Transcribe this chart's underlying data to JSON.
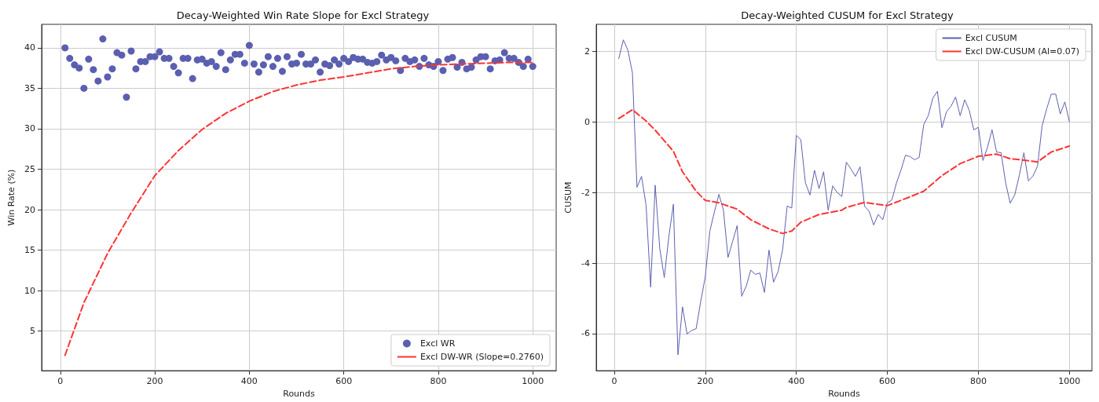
{
  "chart_data": [
    {
      "type": "scatter",
      "title": "Decay-Weighted Win Rate Slope for Excl Strategy",
      "xlabel": "Rounds",
      "ylabel": "Win Rate (%)",
      "xlim": [
        -39.5,
        1049.5
      ],
      "ylim": [
        0.1,
        42.9
      ],
      "xticks": [
        0,
        200,
        400,
        600,
        800,
        1000
      ],
      "yticks": [
        5,
        10,
        15,
        20,
        25,
        30,
        35,
        40
      ],
      "grid": true,
      "legend": "bottom right",
      "series": [
        {
          "name": "Excl WR",
          "marker": "circle",
          "color": "#5b5fb0",
          "x": [
            10,
            20,
            30,
            40,
            50,
            60,
            70,
            80,
            90,
            100,
            110,
            120,
            130,
            140,
            150,
            160,
            170,
            180,
            190,
            200,
            210,
            220,
            230,
            240,
            250,
            260,
            270,
            280,
            290,
            300,
            310,
            320,
            330,
            340,
            350,
            360,
            370,
            380,
            390,
            400,
            410,
            420,
            430,
            440,
            450,
            460,
            470,
            480,
            490,
            500,
            510,
            520,
            530,
            540,
            550,
            560,
            570,
            580,
            590,
            600,
            610,
            620,
            630,
            640,
            650,
            660,
            670,
            680,
            690,
            700,
            710,
            720,
            730,
            740,
            750,
            760,
            770,
            780,
            790,
            800,
            810,
            820,
            830,
            840,
            850,
            860,
            870,
            880,
            890,
            900,
            910,
            920,
            930,
            940,
            950,
            960,
            970,
            980,
            990,
            1000
          ],
          "values": [
            40.0,
            38.7,
            37.9,
            37.5,
            35.0,
            38.6,
            37.3,
            35.9,
            41.1,
            36.4,
            37.4,
            39.4,
            39.1,
            33.9,
            39.6,
            37.4,
            38.3,
            38.3,
            38.9,
            38.9,
            39.5,
            38.7,
            38.7,
            37.7,
            36.9,
            38.7,
            38.7,
            36.2,
            38.5,
            38.6,
            38.1,
            38.3,
            37.7,
            39.4,
            37.3,
            38.5,
            39.2,
            39.2,
            38.1,
            40.3,
            38.0,
            37.0,
            37.9,
            38.9,
            37.7,
            38.7,
            37.1,
            38.9,
            38.0,
            38.1,
            39.2,
            38.0,
            38.0,
            38.5,
            37.0,
            38.0,
            37.8,
            38.5,
            38.0,
            38.7,
            38.3,
            38.8,
            38.6,
            38.6,
            38.2,
            38.1,
            38.3,
            39.1,
            38.5,
            38.8,
            38.4,
            37.2,
            38.7,
            38.3,
            38.5,
            37.7,
            38.7,
            37.9,
            37.7,
            38.3,
            37.2,
            38.6,
            38.8,
            37.6,
            38.2,
            37.4,
            37.6,
            38.5,
            38.9,
            38.9,
            37.4,
            38.4,
            38.5,
            39.4,
            38.7,
            38.7,
            38.2,
            37.7,
            38.6,
            37.7
          ]
        },
        {
          "name": "Excl DW-WR (Slope=0.2760)",
          "type": "line",
          "marker": "none",
          "line_style": "dashed",
          "color": "#ff3333",
          "x": [
            10,
            50,
            100,
            150,
            200,
            250,
            300,
            350,
            400,
            450,
            500,
            550,
            600,
            650,
            700,
            750,
            800,
            850,
            900,
            950,
            1000
          ],
          "values": [
            2.0,
            8.5,
            14.6,
            19.6,
            24.2,
            27.3,
            29.9,
            31.9,
            33.4,
            34.6,
            35.4,
            36.0,
            36.4,
            36.9,
            37.4,
            37.7,
            37.9,
            38.0,
            38.1,
            38.2,
            38.2
          ]
        }
      ]
    },
    {
      "type": "line",
      "title": "Decay-Weighted CUSUM for Excl Strategy",
      "xlabel": "Rounds",
      "ylabel": "CUSUM",
      "xlim": [
        -39.5,
        1049.5
      ],
      "ylim": [
        -7.05,
        2.77
      ],
      "xticks": [
        0,
        200,
        400,
        600,
        800,
        1000
      ],
      "yticks": [
        -6,
        -4,
        -2,
        0,
        2
      ],
      "grid": true,
      "legend": "top right",
      "series": [
        {
          "name": "Excl CUSUM",
          "marker": "none",
          "line_style": "solid",
          "color": "#5c60b0",
          "x": [
            10,
            20,
            30,
            40,
            50,
            60,
            70,
            80,
            90,
            100,
            110,
            120,
            130,
            140,
            150,
            160,
            170,
            180,
            190,
            200,
            210,
            220,
            230,
            240,
            250,
            260,
            270,
            280,
            290,
            300,
            310,
            320,
            330,
            340,
            350,
            360,
            370,
            380,
            390,
            400,
            410,
            420,
            430,
            440,
            450,
            460,
            470,
            480,
            490,
            500,
            510,
            520,
            530,
            540,
            550,
            560,
            570,
            580,
            590,
            600,
            610,
            620,
            630,
            640,
            650,
            660,
            670,
            680,
            690,
            700,
            710,
            720,
            730,
            740,
            750,
            760,
            770,
            780,
            790,
            800,
            810,
            820,
            830,
            840,
            850,
            860,
            870,
            880,
            890,
            900,
            910,
            920,
            930,
            940,
            950,
            960,
            970,
            980,
            990,
            1000
          ],
          "values": [
            1.8,
            2.33,
            2.04,
            1.39,
            -1.85,
            -1.54,
            -2.36,
            -4.68,
            -1.79,
            -3.58,
            -4.41,
            -3.25,
            -2.33,
            -6.6,
            -5.24,
            -6.01,
            -5.91,
            -5.86,
            -5.09,
            -4.39,
            -3.1,
            -2.55,
            -2.05,
            -2.5,
            -3.84,
            -3.39,
            -2.94,
            -4.94,
            -4.65,
            -4.2,
            -4.32,
            -4.28,
            -4.83,
            -3.63,
            -4.54,
            -4.24,
            -3.62,
            -2.38,
            -2.44,
            -0.38,
            -0.5,
            -1.72,
            -2.07,
            -1.37,
            -1.89,
            -1.41,
            -2.5,
            -1.81,
            -2.0,
            -2.11,
            -1.14,
            -1.33,
            -1.54,
            -1.27,
            -2.39,
            -2.53,
            -2.92,
            -2.62,
            -2.77,
            -2.29,
            -2.21,
            -1.73,
            -1.36,
            -0.94,
            -0.98,
            -1.07,
            -1.0,
            -0.07,
            0.18,
            0.68,
            0.87,
            -0.16,
            0.29,
            0.45,
            0.71,
            0.18,
            0.63,
            0.33,
            -0.22,
            -0.15,
            -1.09,
            -0.72,
            -0.22,
            -0.85,
            -0.87,
            -1.73,
            -2.3,
            -2.06,
            -1.51,
            -0.87,
            -1.67,
            -1.53,
            -1.25,
            -0.11,
            0.37,
            0.79,
            0.79,
            0.23,
            0.57,
            0.01
          ]
        },
        {
          "name": "Excl DW-CUSUM (Al=0.07)",
          "marker": "none",
          "line_style": "dashed",
          "color": "#ff3333",
          "x": [
            10,
            40,
            70,
            90,
            100,
            130,
            150,
            180,
            200,
            230,
            270,
            300,
            340,
            370,
            390,
            410,
            450,
            500,
            510,
            550,
            600,
            650,
            680,
            720,
            760,
            800,
            840,
            870,
            900,
            930,
            960,
            1000
          ],
          "values": [
            0.1,
            0.35,
            0.03,
            -0.23,
            -0.38,
            -0.83,
            -1.41,
            -1.96,
            -2.22,
            -2.29,
            -2.47,
            -2.77,
            -3.03,
            -3.16,
            -3.09,
            -2.84,
            -2.62,
            -2.5,
            -2.42,
            -2.28,
            -2.37,
            -2.12,
            -1.96,
            -1.52,
            -1.18,
            -0.97,
            -0.91,
            -1.04,
            -1.08,
            -1.13,
            -0.85,
            -0.68
          ]
        }
      ]
    }
  ]
}
